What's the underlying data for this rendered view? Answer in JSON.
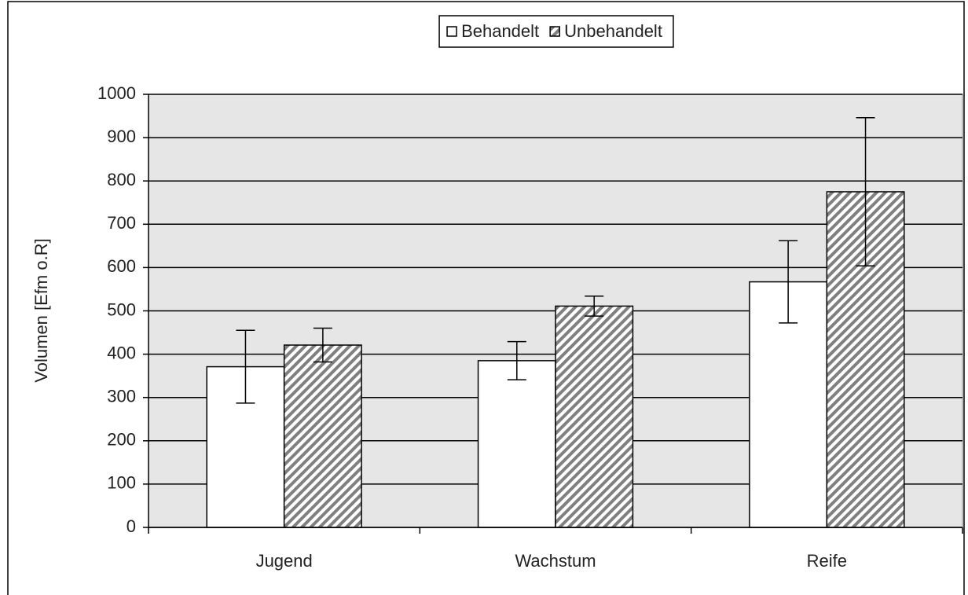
{
  "chart_data": {
    "type": "bar",
    "y_label": "Volumen [Efm o.R]",
    "categories": [
      "Jugend",
      "Wachstum",
      "Reife"
    ],
    "series": [
      {
        "name": "Behandelt",
        "color": "#ffffff",
        "pattern": "solid",
        "values": [
          371,
          385,
          567
        ],
        "errors": [
          84,
          44,
          95
        ]
      },
      {
        "name": "Unbehandelt",
        "color": "#808080",
        "pattern": "diagonal-hatch",
        "values": [
          421,
          511,
          775
        ],
        "errors": [
          39,
          23,
          171
        ]
      }
    ],
    "ylim": [
      0,
      1000
    ],
    "yticks": [
      0,
      100,
      200,
      300,
      400,
      500,
      600,
      700,
      800,
      900,
      1000
    ],
    "grid": true,
    "legend": "top"
  }
}
